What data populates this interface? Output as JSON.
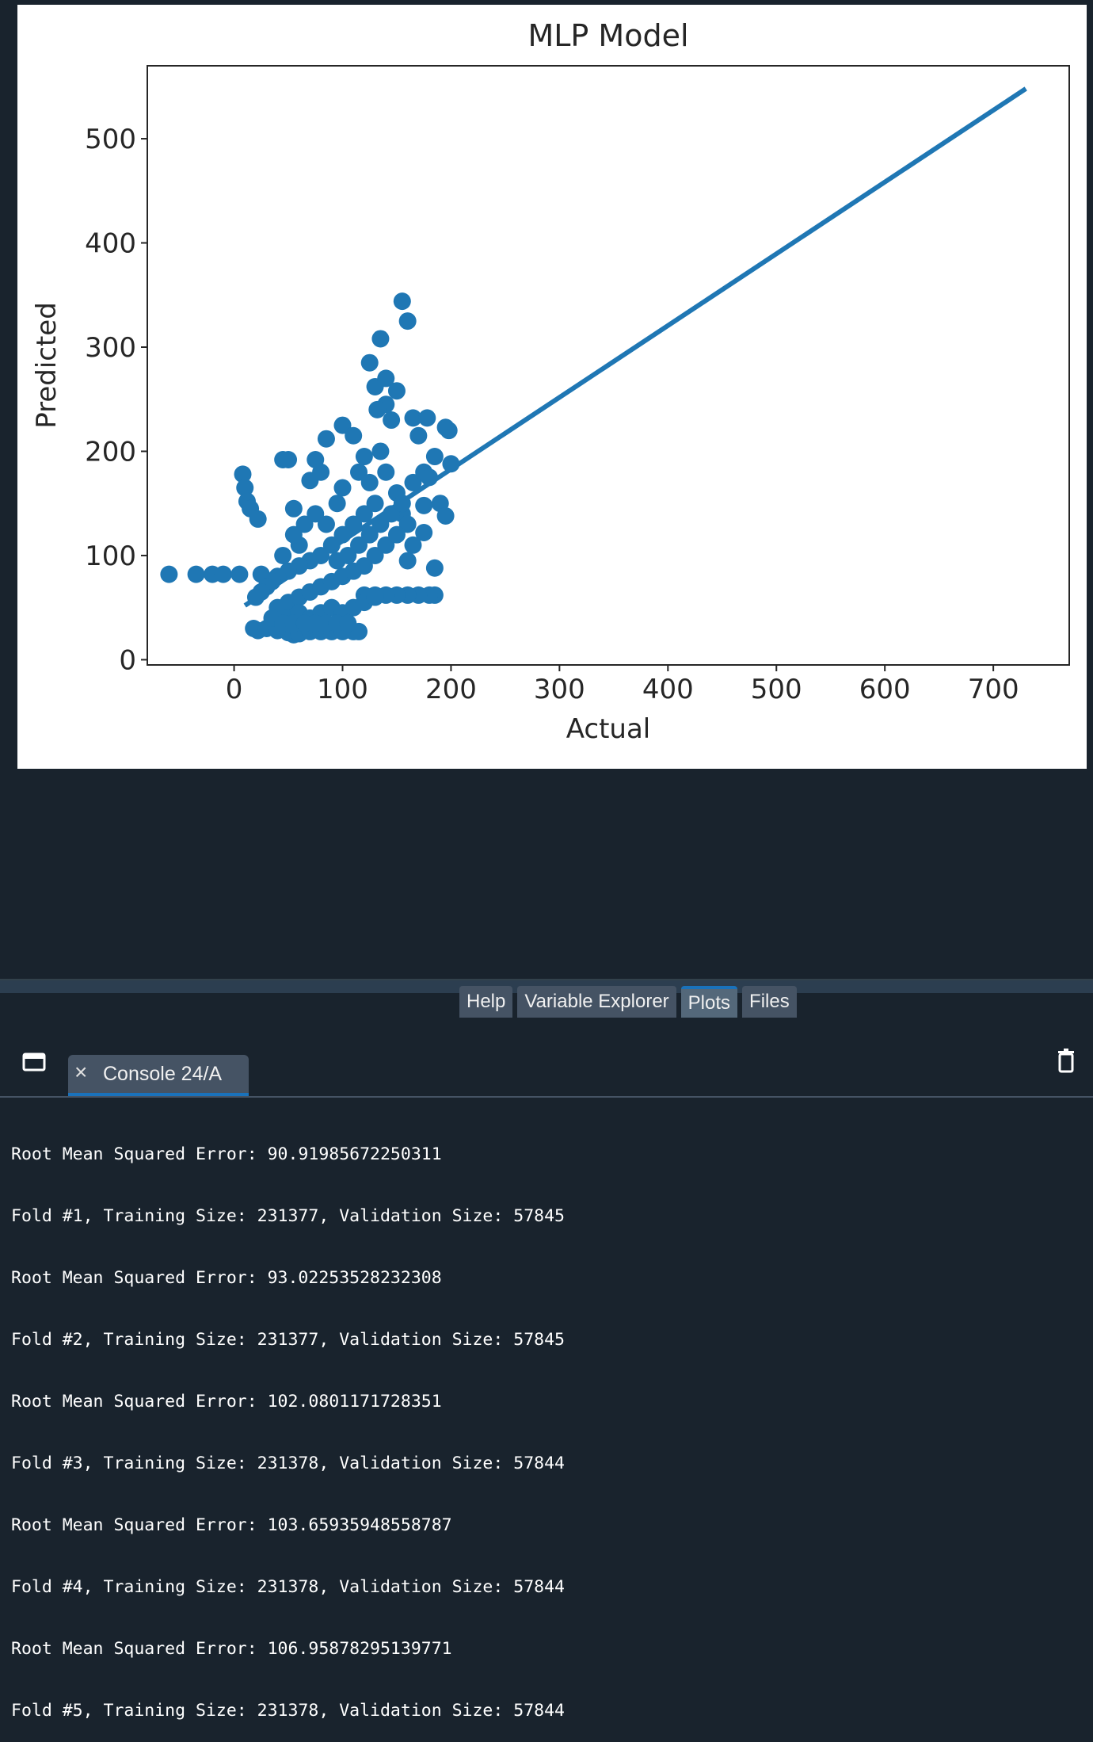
{
  "plot": {
    "chart_data": {
      "type": "scatter",
      "title": "MLP Model",
      "xlabel": "Actual",
      "ylabel": "Predicted",
      "xlim": [
        -80,
        770
      ],
      "ylim": [
        -5,
        570
      ],
      "xticks": [
        0,
        100,
        200,
        300,
        400,
        500,
        600,
        700
      ],
      "yticks": [
        0,
        100,
        200,
        300,
        400,
        500
      ],
      "color": "#1f77b4",
      "fit_line": {
        "x": [
          10,
          730
        ],
        "y": [
          52,
          548
        ]
      },
      "points": [
        [
          -60,
          82
        ],
        [
          -35,
          82
        ],
        [
          -20,
          82
        ],
        [
          -10,
          82
        ],
        [
          5,
          82
        ],
        [
          25,
          82
        ],
        [
          8,
          178
        ],
        [
          10,
          165
        ],
        [
          12,
          152
        ],
        [
          15,
          145
        ],
        [
          22,
          135
        ],
        [
          45,
          192
        ],
        [
          50,
          192
        ],
        [
          55,
          145
        ],
        [
          70,
          172
        ],
        [
          75,
          192
        ],
        [
          80,
          180
        ],
        [
          85,
          212
        ],
        [
          100,
          225
        ],
        [
          110,
          215
        ],
        [
          125,
          285
        ],
        [
          130,
          262
        ],
        [
          140,
          270
        ],
        [
          155,
          344
        ],
        [
          160,
          325
        ],
        [
          135,
          308
        ],
        [
          150,
          258
        ],
        [
          165,
          232
        ],
        [
          170,
          215
        ],
        [
          178,
          232
        ],
        [
          195,
          223
        ],
        [
          198,
          220
        ],
        [
          200,
          188
        ],
        [
          185,
          195
        ],
        [
          190,
          150
        ],
        [
          195,
          138
        ],
        [
          185,
          88
        ],
        [
          185,
          62
        ],
        [
          180,
          62
        ],
        [
          170,
          62
        ],
        [
          160,
          62
        ],
        [
          150,
          62
        ],
        [
          140,
          62
        ],
        [
          130,
          62
        ],
        [
          120,
          62
        ],
        [
          160,
          95
        ],
        [
          165,
          110
        ],
        [
          175,
          122
        ],
        [
          175,
          148
        ],
        [
          120,
          195
        ],
        [
          115,
          180
        ],
        [
          100,
          165
        ],
        [
          95,
          150
        ],
        [
          140,
          180
        ],
        [
          150,
          160
        ],
        [
          155,
          140
        ],
        [
          160,
          130
        ],
        [
          130,
          150
        ],
        [
          120,
          140
        ],
        [
          110,
          130
        ],
        [
          100,
          120
        ],
        [
          90,
          110
        ],
        [
          80,
          100
        ],
        [
          70,
          95
        ],
        [
          60,
          90
        ],
        [
          50,
          85
        ],
        [
          40,
          80
        ],
        [
          35,
          75
        ],
        [
          30,
          70
        ],
        [
          25,
          65
        ],
        [
          20,
          60
        ],
        [
          18,
          30
        ],
        [
          22,
          28
        ],
        [
          30,
          30
        ],
        [
          40,
          28
        ],
        [
          50,
          26
        ],
        [
          55,
          24
        ],
        [
          60,
          25
        ],
        [
          70,
          27
        ],
        [
          80,
          27
        ],
        [
          90,
          27
        ],
        [
          100,
          27
        ],
        [
          110,
          27
        ],
        [
          115,
          27
        ],
        [
          40,
          50
        ],
        [
          50,
          55
        ],
        [
          60,
          60
        ],
        [
          70,
          65
        ],
        [
          80,
          70
        ],
        [
          90,
          75
        ],
        [
          100,
          80
        ],
        [
          110,
          85
        ],
        [
          120,
          90
        ],
        [
          130,
          100
        ],
        [
          140,
          110
        ],
        [
          150,
          120
        ],
        [
          125,
          170
        ],
        [
          135,
          200
        ],
        [
          145,
          230
        ],
        [
          140,
          245
        ],
        [
          132,
          240
        ],
        [
          60,
          110
        ],
        [
          65,
          130
        ],
        [
          55,
          120
        ],
        [
          45,
          100
        ],
        [
          75,
          140
        ],
        [
          85,
          130
        ],
        [
          95,
          95
        ],
        [
          105,
          100
        ],
        [
          115,
          110
        ],
        [
          125,
          120
        ],
        [
          135,
          130
        ],
        [
          145,
          140
        ],
        [
          155,
          150
        ],
        [
          165,
          170
        ],
        [
          175,
          180
        ],
        [
          180,
          175
        ],
        [
          50,
          40
        ],
        [
          60,
          45
        ],
        [
          70,
          40
        ],
        [
          80,
          45
        ],
        [
          90,
          50
        ],
        [
          100,
          45
        ],
        [
          110,
          50
        ],
        [
          120,
          55
        ],
        [
          130,
          60
        ],
        [
          35,
          40
        ],
        [
          45,
          35
        ],
        [
          55,
          35
        ],
        [
          65,
          35
        ],
        [
          75,
          35
        ],
        [
          85,
          35
        ],
        [
          95,
          35
        ],
        [
          105,
          35
        ]
      ]
    }
  },
  "tabs": {
    "help": "Help",
    "variable_explorer": "Variable Explorer",
    "plots": "Plots",
    "files": "Files"
  },
  "console": {
    "tab_label": "Console 24/A",
    "close_glyph": "×",
    "lines": [
      "Root Mean Squared Error: 90.91985672250311",
      "Fold #1, Training Size: 231377, Validation Size: 57845",
      "Root Mean Squared Error: 93.02253528232308",
      "Fold #2, Training Size: 231377, Validation Size: 57845",
      "Root Mean Squared Error: 102.0801171728351",
      "Fold #3, Training Size: 231378, Validation Size: 57844",
      "Root Mean Squared Error: 103.65935948558787",
      "Fold #4, Training Size: 231378, Validation Size: 57844",
      "Root Mean Squared Error: 106.95878295139771",
      "Fold #5, Training Size: 231378, Validation Size: 57844"
    ]
  },
  "icons": {
    "browse": "folder-icon",
    "trash": "trash-icon"
  }
}
